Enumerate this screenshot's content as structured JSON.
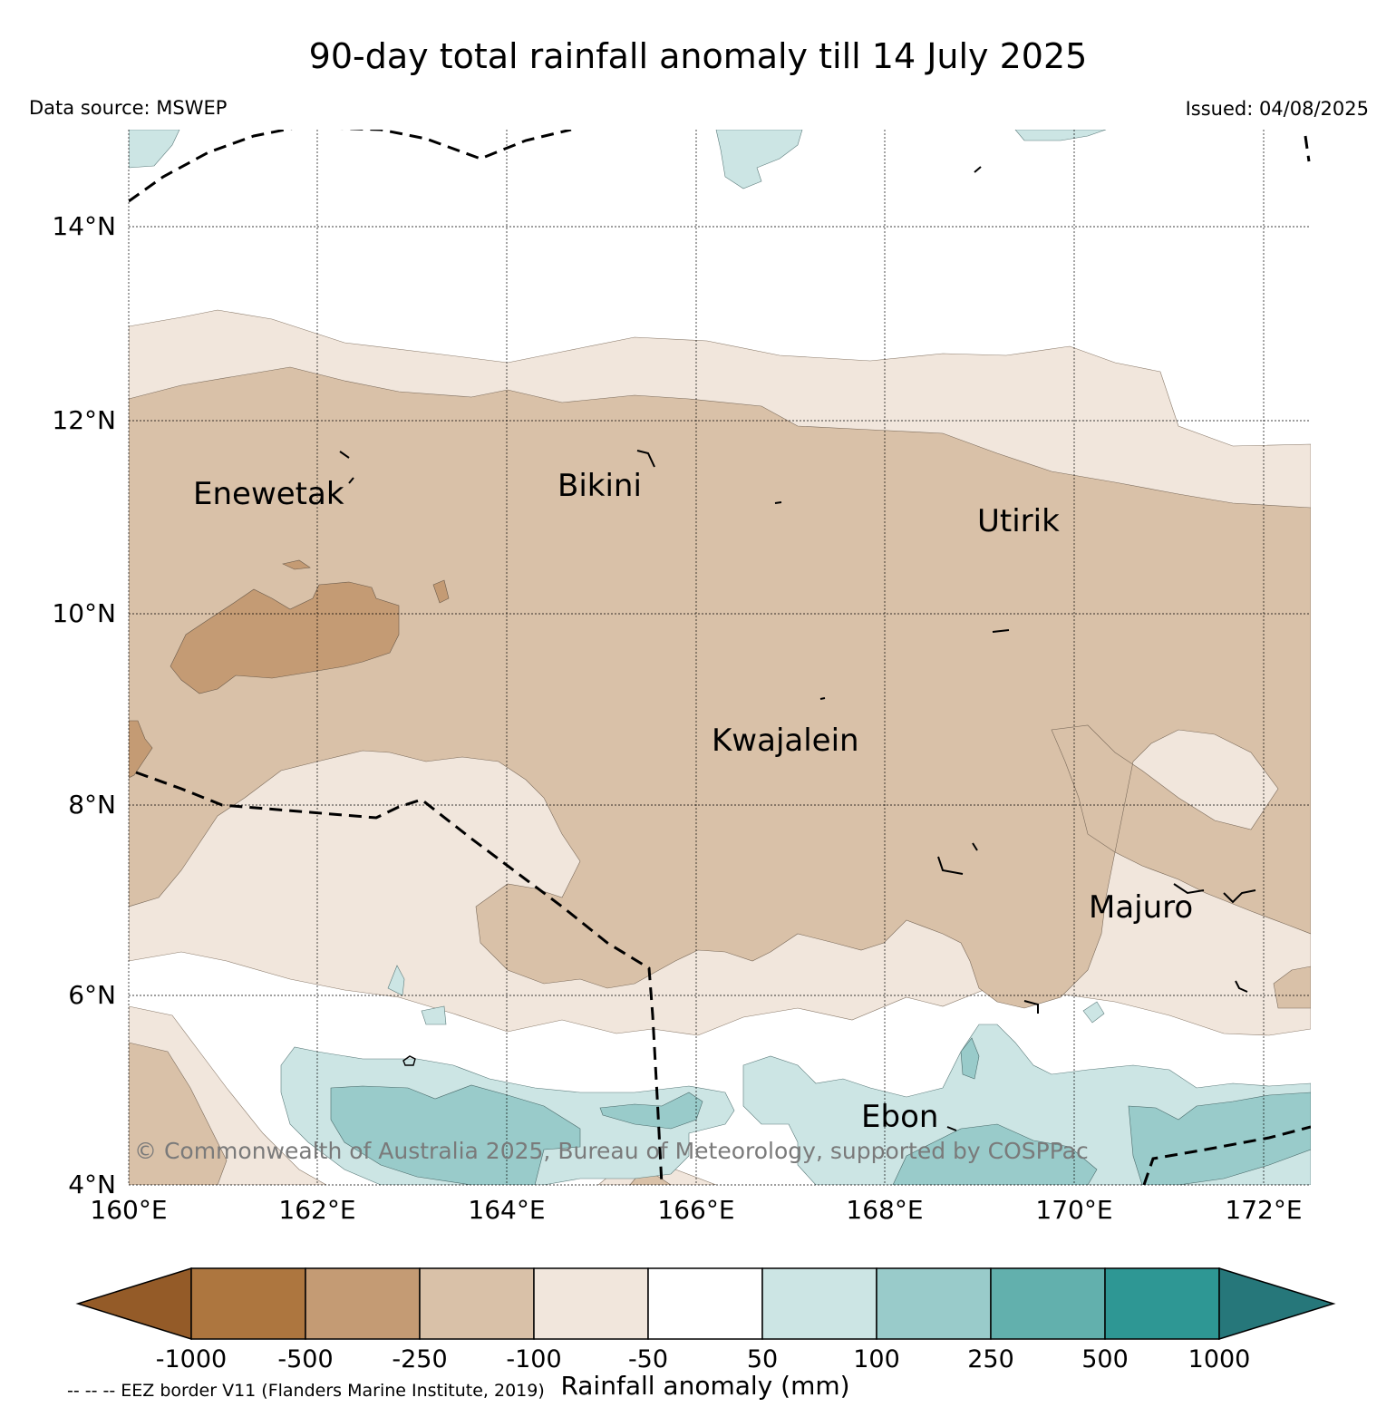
{
  "title": "90-day total rainfall anomaly till 14 July 2025",
  "source": "Data source: MSWEP",
  "issued": "Issued: 04/08/2025",
  "copyright": "© Commonwealth of Australia 2025, Bureau of Meteorology, supported by COSPPac",
  "eez_note": "-- -- -- EEZ border V11 (Flanders Marine Institute, 2019)",
  "map": {
    "lat_range": [
      4,
      15
    ],
    "lon_range": [
      160,
      172.5
    ],
    "lat_ticks": [
      "14°N",
      "12°N",
      "10°N",
      "8°N",
      "6°N",
      "4°N"
    ],
    "lon_ticks": [
      "160°E",
      "162°E",
      "164°E",
      "166°E",
      "168°E",
      "170°E",
      "172°E"
    ],
    "islands": [
      "Enewetak",
      "Bikini",
      "Utirik",
      "Kwajalein",
      "Majuro",
      "Ebon"
    ]
  },
  "colorbar": {
    "title": "Rainfall anomaly (mm)",
    "labels": [
      "-1000",
      "-500",
      "-250",
      "-100",
      "-50",
      "50",
      "100",
      "250",
      "500",
      "1000"
    ],
    "colors": [
      "#945b28",
      "#ad763f",
      "#c49b74",
      "#d9c1a8",
      "#f1e6dc",
      "#ffffff",
      "#cce5e4",
      "#99cbca",
      "#62b0ad",
      "#2e9794",
      "#26777a"
    ]
  }
}
